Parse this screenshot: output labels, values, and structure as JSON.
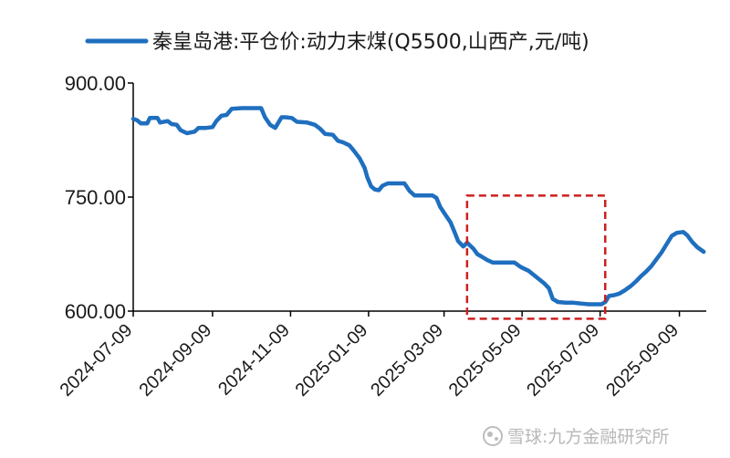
{
  "chart_data": {
    "type": "line",
    "series": [
      {
        "name": "秦皇岛港:平仓价:动力末煤(Q5500,山西产,元/吨)",
        "color": "#1f6fbf",
        "points": [
          [
            "2024-07-09",
            853
          ],
          [
            "2024-07-12",
            851
          ],
          [
            "2024-07-15",
            847
          ],
          [
            "2024-07-20",
            847
          ],
          [
            "2024-07-22",
            854
          ],
          [
            "2024-07-28",
            854
          ],
          [
            "2024-07-30",
            848
          ],
          [
            "2024-08-05",
            850
          ],
          [
            "2024-08-08",
            846
          ],
          [
            "2024-08-12",
            845
          ],
          [
            "2024-08-15",
            838
          ],
          [
            "2024-08-20",
            834
          ],
          [
            "2024-08-26",
            836
          ],
          [
            "2024-08-29",
            841
          ],
          [
            "2024-09-04",
            841
          ],
          [
            "2024-09-09",
            842
          ],
          [
            "2024-09-12",
            850
          ],
          [
            "2024-09-16",
            857
          ],
          [
            "2024-09-20",
            858
          ],
          [
            "2024-09-24",
            866
          ],
          [
            "2024-10-02",
            867
          ],
          [
            "2024-10-08",
            867
          ],
          [
            "2024-10-14",
            867
          ],
          [
            "2024-10-17",
            867
          ],
          [
            "2024-10-20",
            855
          ],
          [
            "2024-10-24",
            845
          ],
          [
            "2024-10-28",
            841
          ],
          [
            "2024-11-02",
            855
          ],
          [
            "2024-11-05",
            855
          ],
          [
            "2024-11-10",
            854
          ],
          [
            "2024-11-14",
            849
          ],
          [
            "2024-11-22",
            848
          ],
          [
            "2024-11-28",
            845
          ],
          [
            "2024-12-02",
            840
          ],
          [
            "2024-12-06",
            833
          ],
          [
            "2024-12-12",
            832
          ],
          [
            "2024-12-16",
            824
          ],
          [
            "2024-12-20",
            822
          ],
          [
            "2024-12-25",
            818
          ],
          [
            "2024-12-28",
            812
          ],
          [
            "2025-01-02",
            801
          ],
          [
            "2025-01-06",
            788
          ],
          [
            "2025-01-08",
            776
          ],
          [
            "2025-01-11",
            764
          ],
          [
            "2025-01-14",
            760
          ],
          [
            "2025-01-17",
            759
          ],
          [
            "2025-01-20",
            765
          ],
          [
            "2025-01-24",
            768
          ],
          [
            "2025-02-02",
            768
          ],
          [
            "2025-02-06",
            768
          ],
          [
            "2025-02-10",
            758
          ],
          [
            "2025-02-14",
            752
          ],
          [
            "2025-02-20",
            752
          ],
          [
            "2025-02-28",
            752
          ],
          [
            "2025-03-03",
            749
          ],
          [
            "2025-03-06",
            737
          ],
          [
            "2025-03-10",
            727
          ],
          [
            "2025-03-14",
            717
          ],
          [
            "2025-03-17",
            705
          ],
          [
            "2025-03-20",
            692
          ],
          [
            "2025-03-24",
            685
          ],
          [
            "2025-03-27",
            690
          ],
          [
            "2025-04-01",
            682
          ],
          [
            "2025-04-04",
            675
          ],
          [
            "2025-04-08",
            671
          ],
          [
            "2025-04-12",
            667
          ],
          [
            "2025-04-16",
            664
          ],
          [
            "2025-04-24",
            664
          ],
          [
            "2025-05-03",
            664
          ],
          [
            "2025-05-08",
            658
          ],
          [
            "2025-05-14",
            653
          ],
          [
            "2025-05-20",
            645
          ],
          [
            "2025-05-26",
            637
          ],
          [
            "2025-05-30",
            630
          ],
          [
            "2025-06-02",
            616
          ],
          [
            "2025-06-06",
            612
          ],
          [
            "2025-06-12",
            611
          ],
          [
            "2025-06-18",
            611
          ],
          [
            "2025-06-24",
            610
          ],
          [
            "2025-06-30",
            609
          ],
          [
            "2025-07-06",
            609
          ],
          [
            "2025-07-10",
            609
          ],
          [
            "2025-07-13",
            612
          ],
          [
            "2025-07-16",
            620
          ],
          [
            "2025-07-20",
            621
          ],
          [
            "2025-07-24",
            623
          ],
          [
            "2025-07-28",
            627
          ],
          [
            "2025-08-02",
            633
          ],
          [
            "2025-08-06",
            639
          ],
          [
            "2025-08-10",
            646
          ],
          [
            "2025-08-14",
            652
          ],
          [
            "2025-08-18",
            659
          ],
          [
            "2025-08-22",
            668
          ],
          [
            "2025-08-26",
            677
          ],
          [
            "2025-08-30",
            688
          ],
          [
            "2025-09-03",
            699
          ],
          [
            "2025-09-07",
            703
          ],
          [
            "2025-09-12",
            704
          ],
          [
            "2025-09-15",
            700
          ],
          [
            "2025-09-19",
            691
          ],
          [
            "2025-09-23",
            684
          ],
          [
            "2025-09-28",
            678
          ]
        ]
      }
    ],
    "x_ticks": [
      "2024-07-09",
      "2024-09-09",
      "2024-11-09",
      "2025-01-09",
      "2025-03-09",
      "2025-05-09",
      "2025-07-09",
      "2025-09-09"
    ],
    "y_ticks": [
      "600.00",
      "750.00",
      "900.00"
    ],
    "ylim": [
      600,
      900
    ],
    "xlim": [
      "2024-07-09",
      "2025-09-30"
    ],
    "legend_position": "top",
    "grid": false,
    "annotations": [
      {
        "type": "dashed-rectangle",
        "x_range": [
          "2025-03-27",
          "2025-07-13"
        ],
        "y_range": [
          590,
          752
        ],
        "color": "#cc1f1f"
      }
    ]
  },
  "watermark": "雪球:九方金融研究所"
}
